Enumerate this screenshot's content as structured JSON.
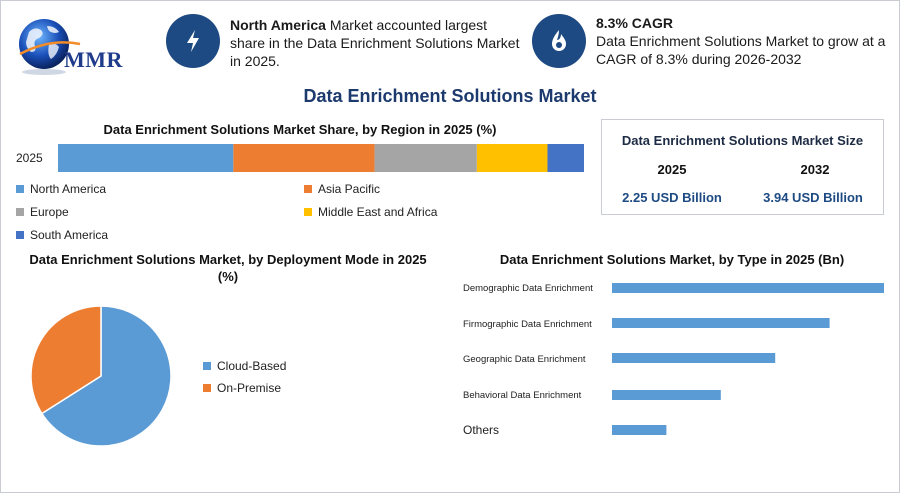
{
  "brand": {
    "logo_text": "MMR"
  },
  "highlights": [
    {
      "icon": "lightning-icon",
      "bold": "North America",
      "text": " Market accounted largest share in the Data Enrichment Solutions Market in 2025."
    },
    {
      "icon": "growth-flame-icon",
      "bold": "8.3% CAGR",
      "text": "Data Enrichment Solutions Market to grow at a CAGR of 8.3% during 2026-2032"
    }
  ],
  "main_title": "Data Enrichment Solutions Market",
  "market_size": {
    "title": "Data Enrichment Solutions Market Size",
    "year_a": "2025",
    "year_b": "2032",
    "value_a": "2.25 USD Billion",
    "value_b": "3.94 USD Billion"
  },
  "colors": {
    "blue": "#5b9bd5",
    "orange": "#ed7d31",
    "gray": "#a5a5a5",
    "yellow": "#ffc000",
    "darkblue": "#4472c4",
    "navy": "#1d4a82"
  },
  "chart_data": [
    {
      "type": "bar",
      "stacked": true,
      "orientation": "horizontal",
      "title": "Data Enrichment Solutions Market Share, by Region in 2025 (%)",
      "categories": [
        "2025"
      ],
      "series": [
        {
          "name": "North America",
          "values": [
            36
          ],
          "color": "#5b9bd5"
        },
        {
          "name": "Asia Pacific",
          "values": [
            29
          ],
          "color": "#ed7d31"
        },
        {
          "name": "Europe",
          "values": [
            21
          ],
          "color": "#a5a5a5"
        },
        {
          "name": "Middle East and Africa",
          "values": [
            14.5
          ],
          "color": "#ffc000"
        },
        {
          "name": "South America",
          "values": [
            7.5
          ],
          "color": "#4472c4"
        }
      ],
      "legend": "bottom"
    },
    {
      "type": "pie",
      "title": "Data Enrichment Solutions Market, by Deployment Mode in 2025 (%)",
      "slices": [
        {
          "name": "Cloud-Based",
          "value": 66,
          "color": "#5b9bd5"
        },
        {
          "name": "On-Premise",
          "value": 34,
          "color": "#ed7d31"
        }
      ],
      "legend": "right"
    },
    {
      "type": "bar",
      "orientation": "horizontal",
      "title": "Data Enrichment Solutions Market, by Type in 2025 (Bn)",
      "categories": [
        "Demographic Data Enrichment",
        "Firmographic Data Enrichment",
        "Geographic Data Enrichment",
        "Behavioral Data Enrichment",
        "Others"
      ],
      "values": [
        0.75,
        0.6,
        0.45,
        0.3,
        0.15
      ],
      "color": "#5b9bd5",
      "xlim": [
        0,
        0.75
      ]
    }
  ]
}
